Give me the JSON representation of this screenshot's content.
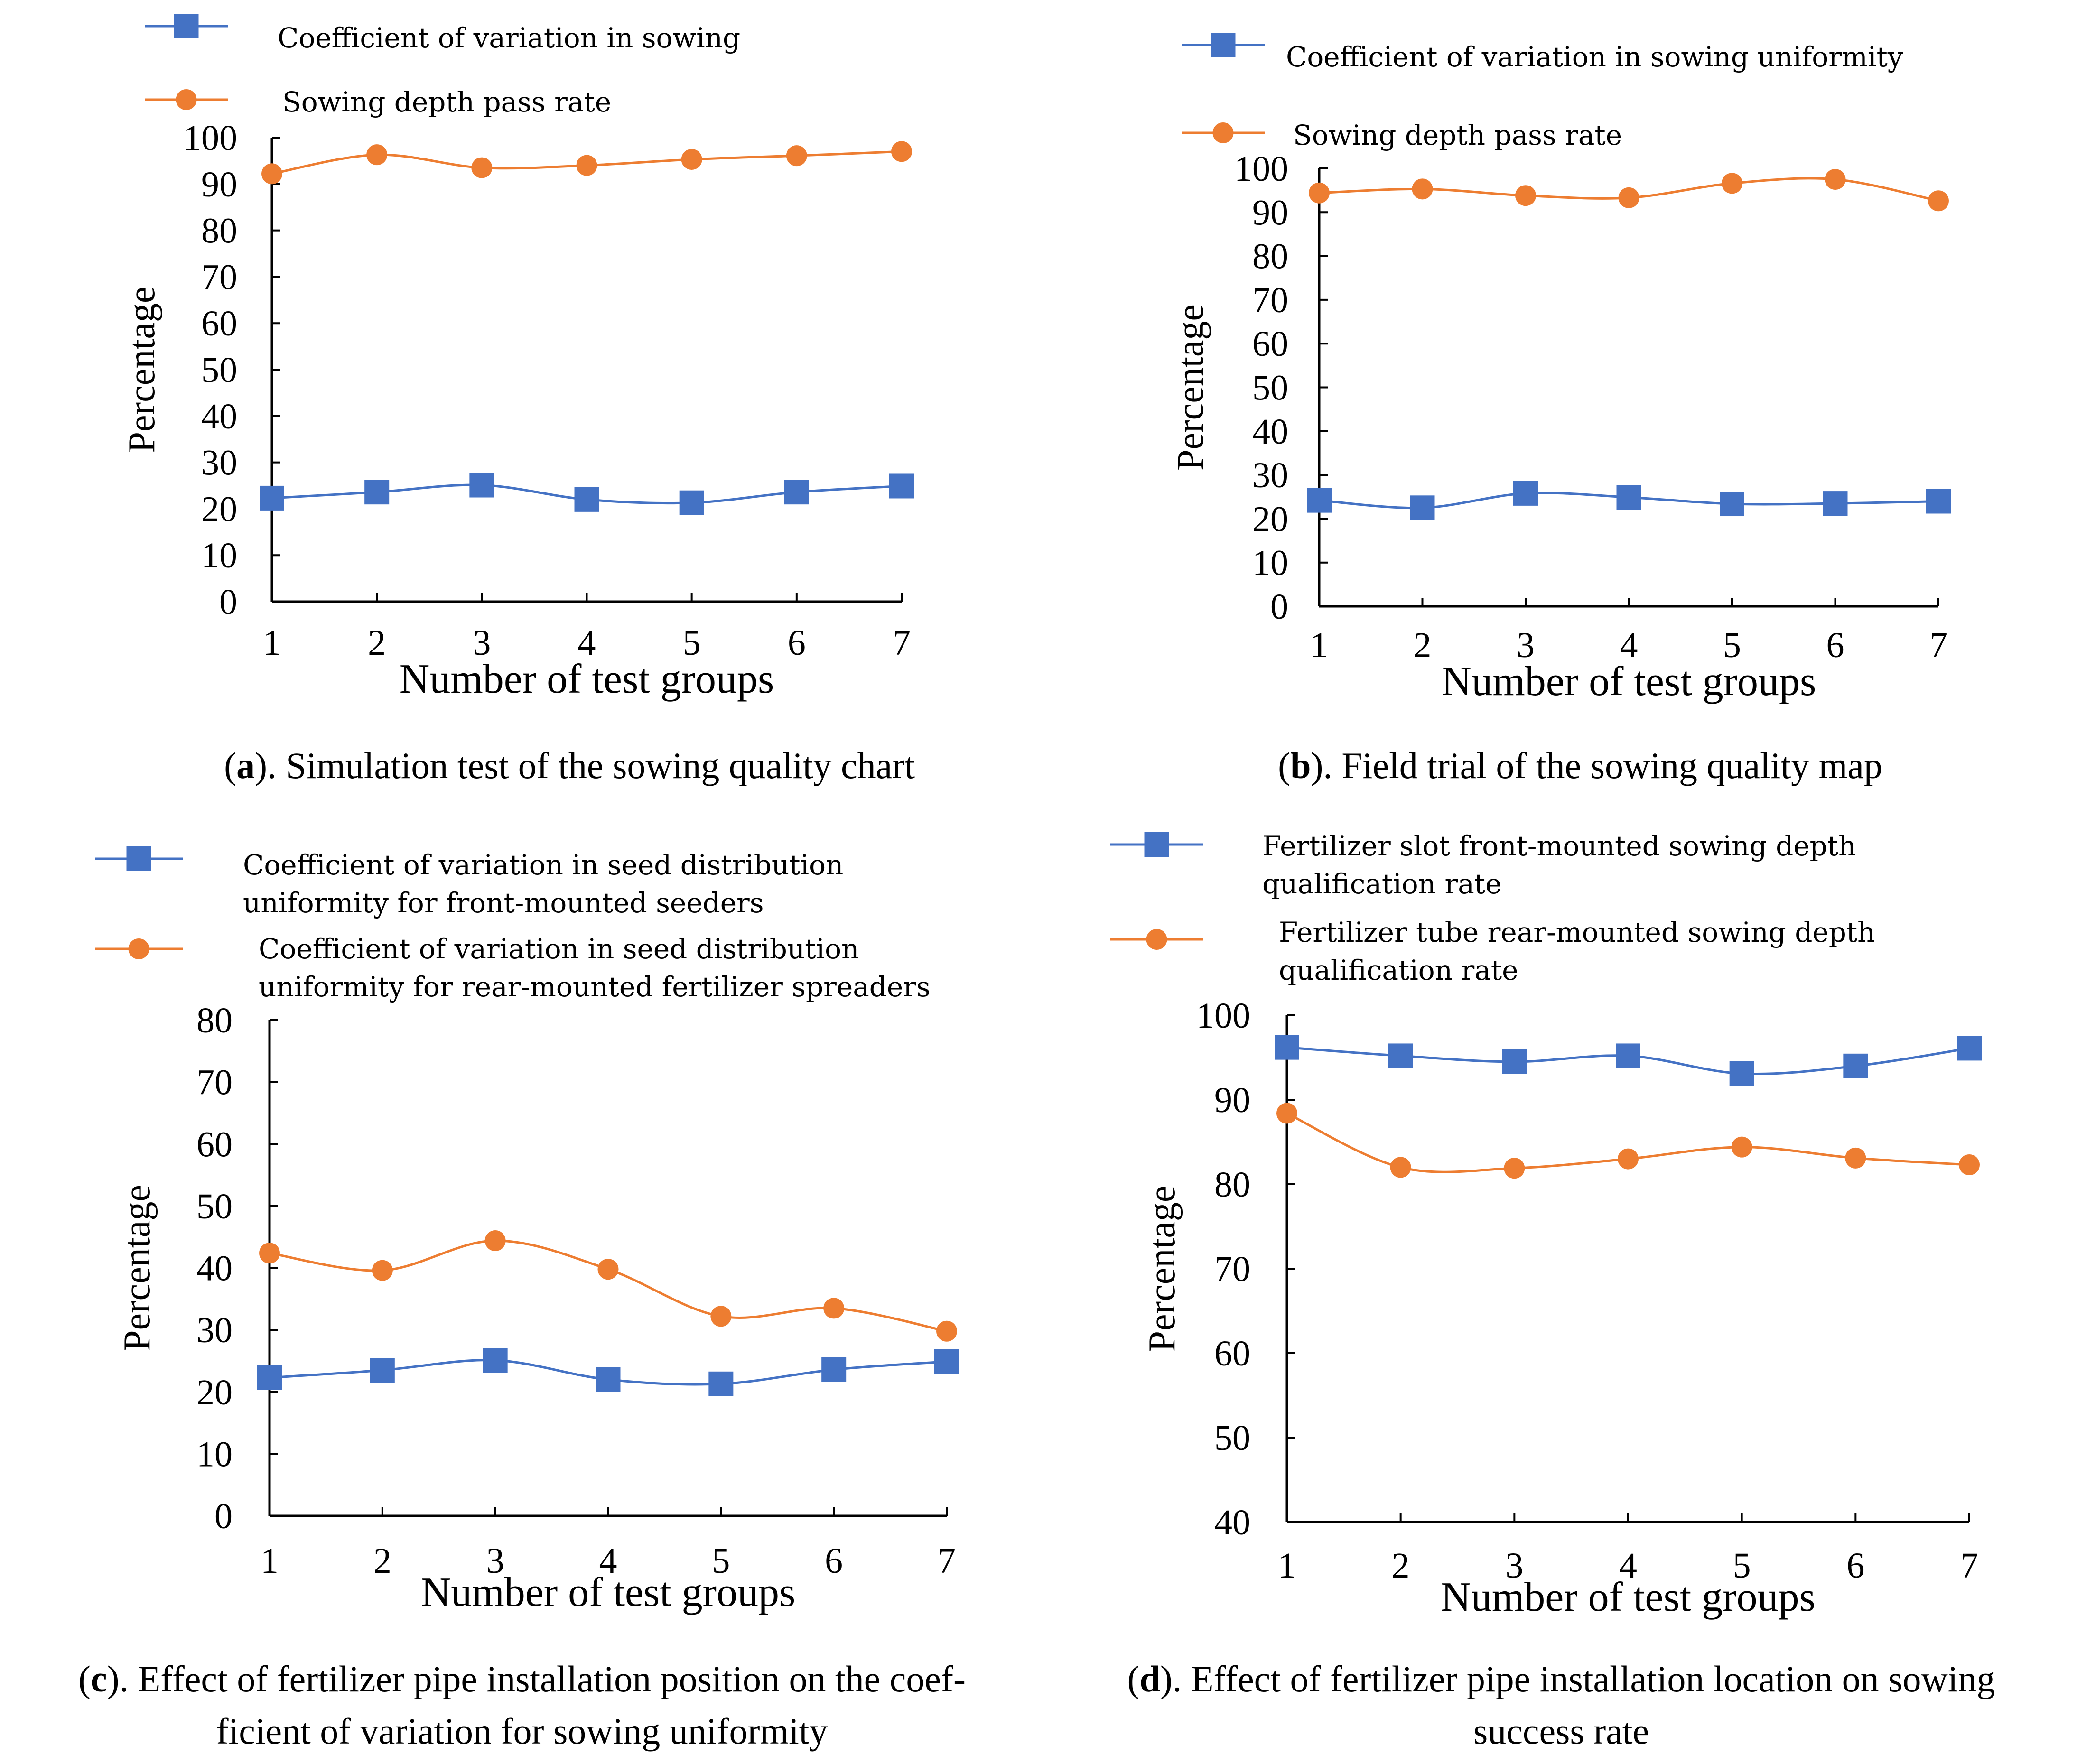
{
  "colors": {
    "blue": "#4472C4",
    "orange": "#ED7D31",
    "axis": "#000000"
  },
  "chart_data": [
    {
      "id": "a",
      "type": "line",
      "title": "",
      "xlabel": "Number of test groups",
      "ylabel": "Percentage",
      "categories": [
        1,
        2,
        3,
        4,
        5,
        6,
        7
      ],
      "ylim": [
        0,
        100
      ],
      "yticks": [
        0,
        10,
        20,
        30,
        40,
        50,
        60,
        70,
        80,
        90,
        100
      ],
      "legend": "top-left",
      "grid": false,
      "caption_letter": "a",
      "caption_lines": [
        ").  Simulation test of the sowing quality chart"
      ],
      "series": [
        {
          "name": "Coefficient of variation in sowing",
          "marker": "square",
          "color": "#4472C4",
          "values": [
            22.3,
            23.6,
            25.1,
            22.0,
            21.3,
            23.6,
            24.9
          ]
        },
        {
          "name": "Sowing depth pass rate",
          "marker": "circle",
          "color": "#ED7D31",
          "values": [
            92.2,
            96.3,
            93.5,
            94.0,
            95.3,
            96.1,
            97.0
          ]
        }
      ]
    },
    {
      "id": "b",
      "type": "line",
      "title": "",
      "xlabel": "Number of test groups",
      "ylabel": "Percentage",
      "categories": [
        1,
        2,
        3,
        4,
        5,
        6,
        7
      ],
      "ylim": [
        0,
        100
      ],
      "yticks": [
        0,
        10,
        20,
        30,
        40,
        50,
        60,
        70,
        80,
        90,
        100
      ],
      "legend": "top-left",
      "grid": false,
      "caption_letter": "b",
      "caption_lines": [
        ").  Field trial of the sowing quality map"
      ],
      "series": [
        {
          "name": "Coefficient of variation in sowing uniformity",
          "marker": "square",
          "color": "#4472C4",
          "values": [
            24.2,
            22.5,
            25.8,
            24.9,
            23.4,
            23.5,
            24.0
          ]
        },
        {
          "name": "Sowing depth pass rate",
          "marker": "circle",
          "color": "#ED7D31",
          "values": [
            94.4,
            95.3,
            93.8,
            93.3,
            96.6,
            97.5,
            92.6
          ]
        }
      ]
    },
    {
      "id": "c",
      "type": "line",
      "title": "",
      "xlabel": "Number of test groups",
      "ylabel": "Percentage",
      "categories": [
        1,
        2,
        3,
        4,
        5,
        6,
        7
      ],
      "ylim": [
        0,
        80
      ],
      "yticks": [
        0,
        10,
        20,
        30,
        40,
        50,
        60,
        70,
        80
      ],
      "legend": "top-left",
      "grid": false,
      "caption_letter": "c",
      "caption_lines": [
        ").  Effect of fertilizer pipe installation position on the coef-",
        "ficient of variation for sowing uniformity"
      ],
      "series": [
        {
          "name": "Coefficient of variation in seed distribution uniformity for front-mounted seeders",
          "name_lines": [
            "Coefficient of variation in seed distribution",
            "uniformity for front-mounted seeders"
          ],
          "marker": "square",
          "color": "#4472C4",
          "values": [
            22.3,
            23.5,
            25.1,
            22.0,
            21.3,
            23.6,
            24.9
          ]
        },
        {
          "name": "Coefficient of variation in seed distribution uniformity for rear-mounted fertilizer spreaders",
          "name_lines": [
            "Coefficient of variation in seed distribution",
            "uniformity for rear-mounted fertilizer spreaders"
          ],
          "marker": "circle",
          "color": "#ED7D31",
          "values": [
            42.4,
            39.6,
            44.4,
            39.8,
            32.2,
            33.5,
            29.8
          ]
        }
      ]
    },
    {
      "id": "d",
      "type": "line",
      "title": "",
      "xlabel": "Number of test groups",
      "ylabel": "Percentage",
      "categories": [
        1,
        2,
        3,
        4,
        5,
        6,
        7
      ],
      "ylim": [
        40,
        100
      ],
      "yticks": [
        40,
        50,
        60,
        70,
        80,
        90,
        100
      ],
      "legend": "top-left",
      "grid": false,
      "caption_letter": "d",
      "caption_lines": [
        ").  Effect of fertilizer pipe installation location on sowing",
        "success rate"
      ],
      "series": [
        {
          "name": "Fertilizer slot front-mounted sowing depth qualification rate",
          "name_lines": [
            "Fertilizer slot front-mounted sowing depth",
            "qualification rate"
          ],
          "marker": "square",
          "color": "#4472C4",
          "values": [
            96.2,
            95.2,
            94.5,
            95.2,
            93.1,
            94.0,
            96.1
          ]
        },
        {
          "name": "Fertilizer tube rear-mounted sowing depth qualification rate",
          "name_lines": [
            "Fertilizer tube rear-mounted sowing depth",
            "qualification rate"
          ],
          "marker": "circle",
          "color": "#ED7D31",
          "values": [
            88.4,
            82.0,
            81.9,
            83.0,
            84.4,
            83.1,
            82.3
          ]
        }
      ]
    }
  ]
}
